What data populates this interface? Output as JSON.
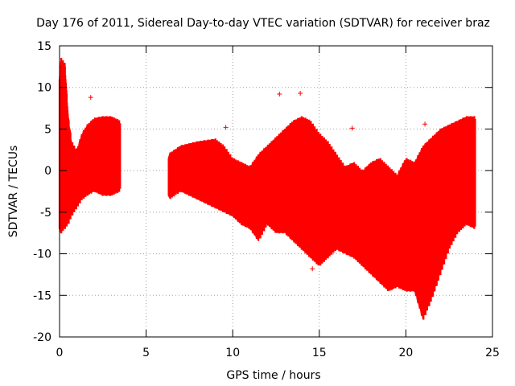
{
  "chart_data": {
    "type": "scatter",
    "title": "Day 176 of 2011, Sidereal Day-to-day VTEC variation (SDTVAR) for receiver braz",
    "xlabel": "GPS time / hours",
    "ylabel": "SDTVAR / TECUs",
    "xlim": [
      0,
      25
    ],
    "ylim": [
      -20,
      15
    ],
    "xticks": [
      0,
      5,
      10,
      15,
      20,
      25
    ],
    "yticks": [
      -20,
      -15,
      -10,
      -5,
      0,
      5,
      10,
      15
    ],
    "grid": true,
    "marker": "+",
    "color": "#ff0000",
    "series": [
      {
        "name": "SDTVAR",
        "envelope": [
          [
            0.0,
            -7,
            11
          ],
          [
            0.1,
            -7,
            13
          ],
          [
            0.3,
            -6.5,
            12.5
          ],
          [
            0.5,
            -6,
            6
          ],
          [
            0.7,
            -5,
            3
          ],
          [
            1.0,
            -4,
            2
          ],
          [
            1.3,
            -3,
            4
          ],
          [
            1.6,
            -2.5,
            5
          ],
          [
            2.0,
            -2,
            5.8
          ],
          [
            2.5,
            -2.5,
            6
          ],
          [
            3.0,
            -2.5,
            6
          ],
          [
            3.5,
            -2,
            5.5
          ],
          [
            6.3,
            -3,
            1.5
          ],
          [
            7.0,
            -2,
            2.5
          ],
          [
            8.0,
            -3,
            3
          ],
          [
            9.0,
            -4,
            3.3
          ],
          [
            9.5,
            -4.5,
            2.5
          ],
          [
            10.0,
            -5,
            1
          ],
          [
            10.5,
            -6,
            0.5
          ],
          [
            11.0,
            -6.5,
            0
          ],
          [
            11.5,
            -8,
            1.5
          ],
          [
            12.0,
            -6,
            2.5
          ],
          [
            12.5,
            -7,
            3.5
          ],
          [
            13.0,
            -7,
            4.5
          ],
          [
            13.5,
            -8,
            5.5
          ],
          [
            14.0,
            -9,
            6
          ],
          [
            14.5,
            -10,
            5.5
          ],
          [
            15.0,
            -11,
            4
          ],
          [
            15.5,
            -10,
            3
          ],
          [
            16.0,
            -9,
            1.5
          ],
          [
            16.5,
            -9.5,
            0
          ],
          [
            17.0,
            -10,
            0.5
          ],
          [
            17.5,
            -11,
            -0.5
          ],
          [
            18.0,
            -12,
            0.5
          ],
          [
            18.5,
            -13,
            1
          ],
          [
            19.0,
            -14,
            0
          ],
          [
            19.5,
            -13.5,
            -1
          ],
          [
            20.0,
            -14,
            1
          ],
          [
            20.5,
            -14,
            0.5
          ],
          [
            21.0,
            -17.5,
            2.5
          ],
          [
            21.5,
            -15,
            3.5
          ],
          [
            22.0,
            -12,
            4.5
          ],
          [
            22.5,
            -9,
            5
          ],
          [
            23.0,
            -7,
            5.5
          ],
          [
            23.5,
            -6,
            6
          ],
          [
            24.0,
            -6.5,
            6
          ]
        ],
        "outliers": [
          [
            1.8,
            8.8
          ],
          [
            9.6,
            5.2
          ],
          [
            12.7,
            9.2
          ],
          [
            13.9,
            9.3
          ],
          [
            14.6,
            -11.8
          ],
          [
            16.9,
            5.1
          ],
          [
            21.1,
            5.6
          ]
        ]
      }
    ]
  }
}
